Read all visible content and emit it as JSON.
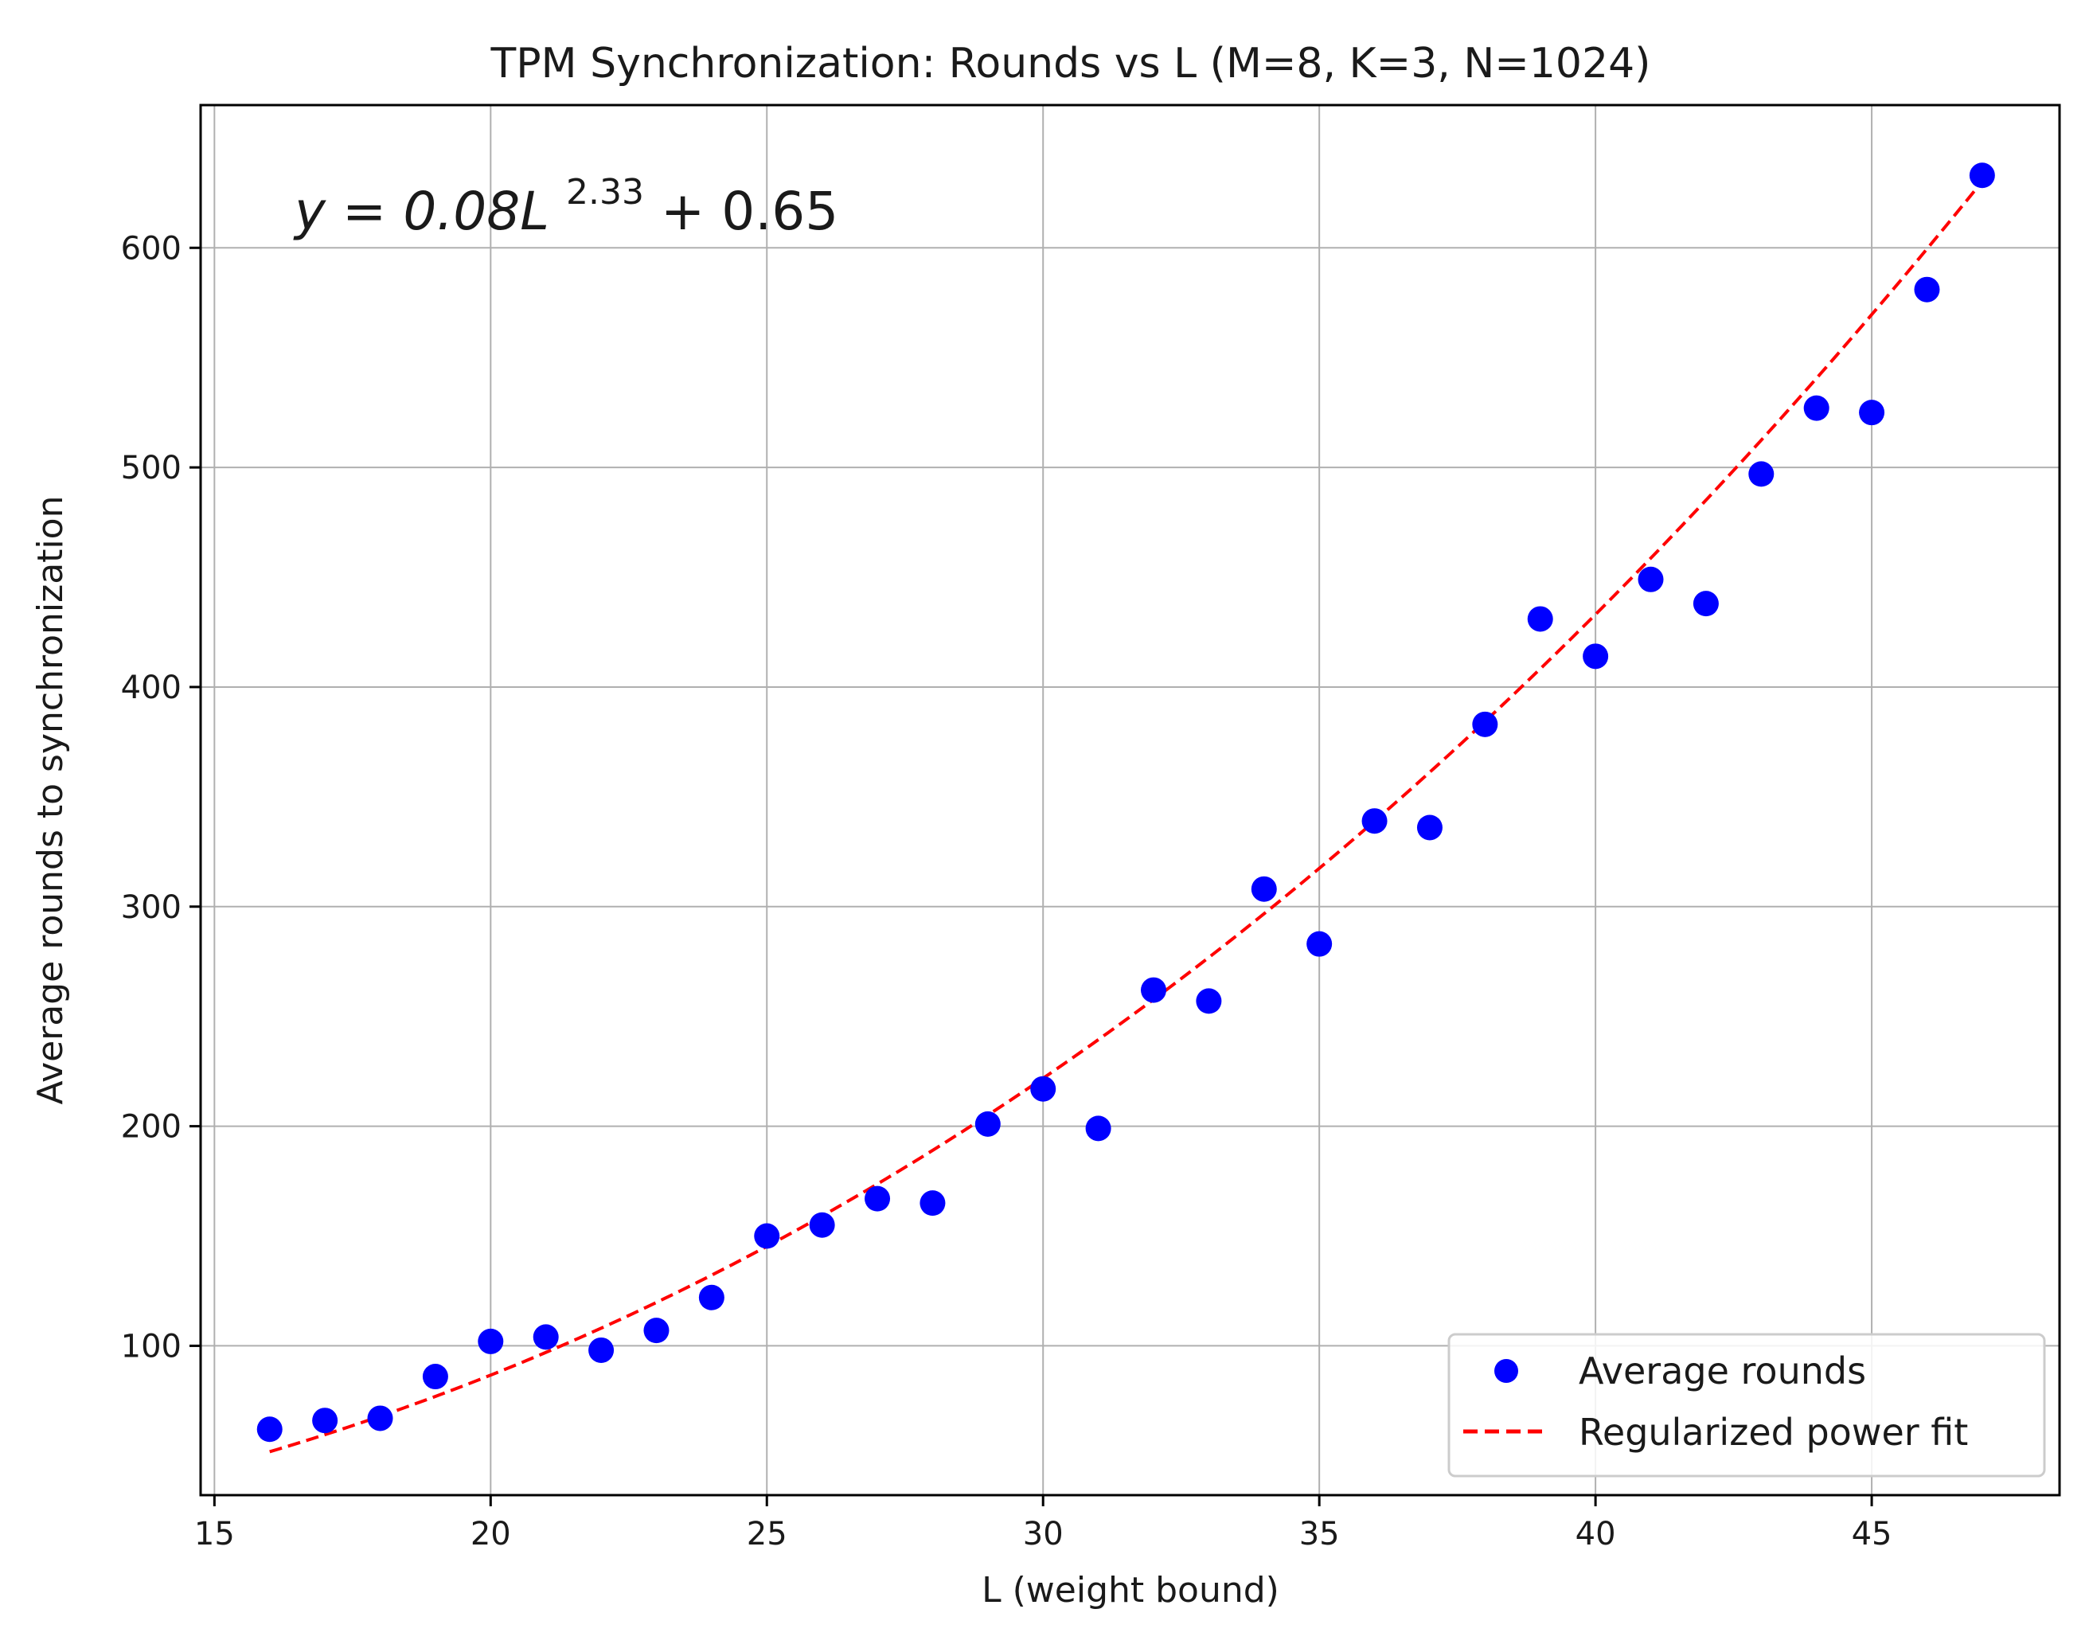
{
  "chart_data": {
    "type": "scatter",
    "title": "TPM Synchronization: Rounds vs L (M=8, K=3, N=1024)",
    "xlabel": "L (weight bound)",
    "ylabel": "Average rounds to synchronization",
    "xlim": [
      14.75,
      48.4
    ],
    "ylim": [
      32,
      665
    ],
    "xticks": [
      15,
      20,
      25,
      30,
      35,
      40,
      45
    ],
    "yticks": [
      100,
      200,
      300,
      400,
      500,
      600
    ],
    "grid": true,
    "legend_position": "bottom-right",
    "annotation": {
      "prefix": "y = 0.08L",
      "exponent": "2.33",
      "suffix": " + 0.65"
    },
    "series": [
      {
        "name": "Average rounds",
        "kind": "scatter",
        "color": "#0000ff",
        "x": [
          16,
          17,
          18,
          19,
          20,
          21,
          22,
          23,
          24,
          25,
          26,
          27,
          28,
          29,
          30,
          31,
          32,
          33,
          34,
          35,
          36,
          37,
          38,
          39,
          40,
          41,
          42,
          43,
          44,
          45,
          46,
          47
        ],
        "y": [
          62,
          66,
          67,
          86,
          102,
          104,
          98,
          107,
          122,
          150,
          155,
          167,
          165,
          201,
          217,
          199,
          262,
          257,
          308,
          283,
          339,
          336,
          383,
          431,
          414,
          449,
          438,
          497,
          527,
          525,
          581,
          633
        ]
      },
      {
        "name": "Regularized power fit",
        "kind": "line",
        "style": "dashed",
        "color": "#ff0000",
        "a": 0.08,
        "b": 2.33,
        "c": 0.65,
        "x_range": [
          16,
          47
        ]
      }
    ]
  }
}
